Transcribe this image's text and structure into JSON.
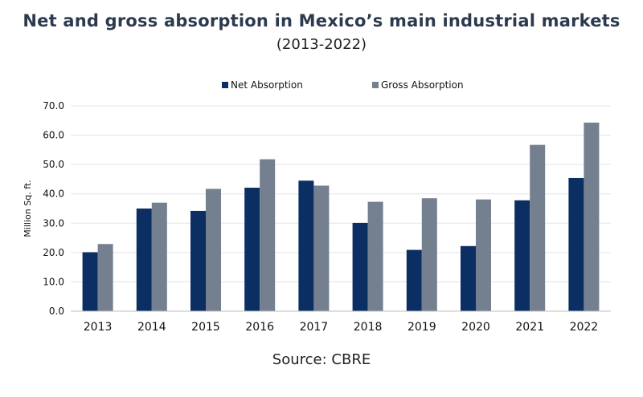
{
  "title": "Net and gross absorption in Mexico’s main industrial markets",
  "subtitle": "(2013-2022)",
  "source": "Source: CBRE",
  "colors": {
    "net": "#0b2e63",
    "gross": "#74808f"
  },
  "chart_data": {
    "type": "bar",
    "title": "Net and gross absorption in Mexico’s main industrial markets",
    "xlabel": "",
    "ylabel": "Million Sq. ft.",
    "ylim": [
      0,
      70
    ],
    "yticks": [
      "0.0",
      "10.0",
      "20.0",
      "30.0",
      "40.0",
      "50.0",
      "60.0",
      "70.0"
    ],
    "legend": "top-center",
    "grid": true,
    "categories": [
      "2013",
      "2014",
      "2015",
      "2016",
      "2017",
      "2018",
      "2019",
      "2020",
      "2021",
      "2022"
    ],
    "series": [
      {
        "name": "Net Absorption",
        "values": [
          20.1,
          35.0,
          34.2,
          42.1,
          44.5,
          30.1,
          20.9,
          22.2,
          37.8,
          45.4
        ]
      },
      {
        "name": "Gross Absorption",
        "values": [
          22.9,
          37.0,
          41.7,
          51.8,
          42.8,
          37.3,
          38.5,
          38.1,
          56.7,
          64.3
        ]
      }
    ]
  }
}
